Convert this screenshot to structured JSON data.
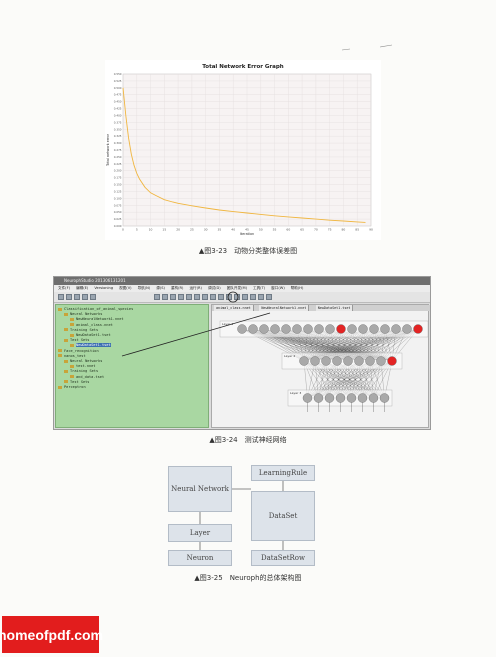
{
  "figure1": {
    "caption": "▲图3-23　动物分类整体误差图",
    "chart_data": {
      "type": "line",
      "title": "Total Network Error Graph",
      "xlabel": "Iteration",
      "ylabel": "Total network error",
      "xlim": [
        0,
        90
      ],
      "ylim": [
        0,
        0.55
      ],
      "x_ticks": [
        "0",
        "5",
        "10",
        "15",
        "20",
        "25",
        "30",
        "35",
        "40",
        "45",
        "50",
        "55",
        "60",
        "65",
        "70",
        "75",
        "80",
        "85",
        "90"
      ],
      "y_ticks": [
        "0.000",
        "0.025",
        "0.050",
        "0.075",
        "0.100",
        "0.125",
        "0.150",
        "0.175",
        "0.200",
        "0.225",
        "0.250",
        "0.275",
        "0.300",
        "0.325",
        "0.350",
        "0.375",
        "0.400",
        "0.425",
        "0.450",
        "0.475",
        "0.500",
        "0.525",
        "0.550"
      ],
      "series": [
        {
          "color": "#f0b640",
          "x": [
            0,
            1,
            2,
            3,
            4,
            5,
            6,
            8,
            10,
            12,
            15,
            18,
            20,
            25,
            30,
            35,
            40,
            45,
            50,
            55,
            60,
            65,
            70,
            75,
            80,
            85,
            88
          ],
          "values": [
            0.5,
            0.4,
            0.32,
            0.26,
            0.22,
            0.19,
            0.17,
            0.14,
            0.12,
            0.11,
            0.095,
            0.087,
            0.082,
            0.073,
            0.065,
            0.058,
            0.052,
            0.047,
            0.042,
            0.037,
            0.033,
            0.029,
            0.025,
            0.021,
            0.018,
            0.015,
            0.013
          ]
        }
      ],
      "grid": true
    }
  },
  "figure2": {
    "caption": "▲图3-24　测试神经网络",
    "window_title": "NeurophStudio 201306131201",
    "menu": [
      "文件(F)",
      "编辑(E)",
      "Versioning",
      "视图(V)",
      "导航(N)",
      "源(S)",
      "重构(R)",
      "运行(R)",
      "调试(D)",
      "团队开发(M)",
      "工具(T)",
      "窗口(W)",
      "帮助(H)"
    ],
    "tree": [
      {
        "indent": 0,
        "label": "Classification_of_animal_species"
      },
      {
        "indent": 1,
        "label": "Neural Networks"
      },
      {
        "indent": 2,
        "label": "NewNeuralNetwork1.nnet"
      },
      {
        "indent": 2,
        "label": "animal_class.nnet"
      },
      {
        "indent": 1,
        "label": "Training Sets"
      },
      {
        "indent": 2,
        "label": "NewDataSet1.tset"
      },
      {
        "indent": 1,
        "label": "Test Sets"
      },
      {
        "indent": 2,
        "label": "NewDataSet1.tset",
        "selected": true
      },
      {
        "indent": 0,
        "label": "Face_recognition"
      },
      {
        "indent": 0,
        "label": "nanos_test"
      },
      {
        "indent": 1,
        "label": "Neural Networks"
      },
      {
        "indent": 2,
        "label": "test.nnet"
      },
      {
        "indent": 1,
        "label": "Training Sets"
      },
      {
        "indent": 2,
        "label": "and_data.tset"
      },
      {
        "indent": 1,
        "label": "Test Sets"
      },
      {
        "indent": 0,
        "label": "Perceptron"
      }
    ],
    "tabs": [
      "animal_class.nnet",
      "NewNeuralNetwork1.nnet",
      "NewDataSet1.tset"
    ],
    "layers": [
      "Layer 1",
      "Layer 2",
      "Layer 3"
    ],
    "highlight_color": "#e32424",
    "neuron_color": "#a9a9a9"
  },
  "figure3": {
    "caption": "▲图3-25　Neuroph的总体架构图",
    "boxes": {
      "neural_network": "Neural Network",
      "layer": "Layer",
      "neuron": "Neuron",
      "learning_rule": "LearningRule",
      "dataset": "DataSet",
      "dataset_row": "DataSetRow"
    }
  },
  "watermark": "homeofpdf.com"
}
